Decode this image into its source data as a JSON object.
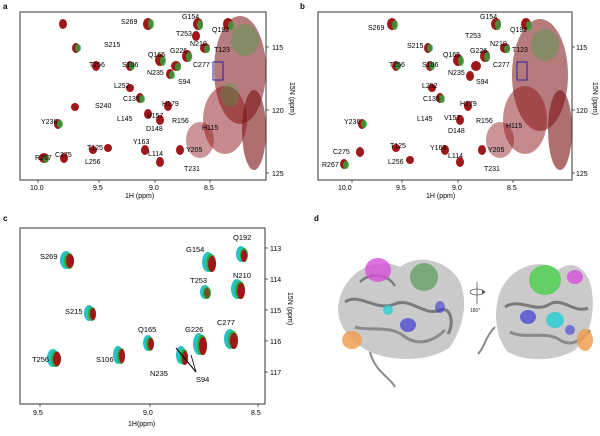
{
  "panels": {
    "a": {
      "label": "a",
      "x_axis": {
        "label": "1H (ppm)",
        "ticks": [
          "10.0",
          "9.5",
          "9.0",
          "8.5"
        ]
      },
      "y_axis": {
        "label": "15N (ppm)",
        "ticks": [
          "115",
          "120",
          "125"
        ]
      },
      "residues": [
        "S269",
        "G154",
        "Q192",
        "S215",
        "N210",
        "T123",
        "T253",
        "Q165",
        "G226",
        "C277",
        "T256",
        "S106",
        "N235",
        "S94",
        "L252",
        "S240",
        "C135",
        "H179",
        "L145",
        "V157",
        "R156",
        "H115",
        "D148",
        "Y236",
        "Y163",
        "L114",
        "Y205",
        "T125",
        "R267",
        "C275",
        "L256",
        "T231"
      ]
    },
    "b": {
      "label": "b",
      "x_axis": {
        "label": "1H (ppm)",
        "ticks": [
          "10.0",
          "9.5",
          "9.0",
          "8.5"
        ]
      },
      "y_axis": {
        "label": "15N (ppm)",
        "ticks": [
          "115",
          "120",
          "125"
        ]
      },
      "residues": [
        "S269",
        "G154",
        "Q192",
        "S215",
        "N210",
        "T123",
        "T253",
        "Q165",
        "G226",
        "C277",
        "T256",
        "S106",
        "N235",
        "S94",
        "L252",
        "C135",
        "H179",
        "L145",
        "V157",
        "R156",
        "H115",
        "D148",
        "Y236",
        "Y163",
        "L114",
        "Y205",
        "T125",
        "C275",
        "R267",
        "L256",
        "T231"
      ]
    },
    "c": {
      "label": "c",
      "x_axis": {
        "label": "1H(ppm)",
        "ticks": [
          "9.5",
          "9.0",
          "8.5"
        ]
      },
      "y_axis": {
        "label": "15N (ppm)",
        "ticks": [
          "113",
          "114",
          "115",
          "116",
          "117"
        ]
      },
      "residues": [
        "S269",
        "G154",
        "Q192",
        "T253",
        "N210",
        "S215",
        "Q165",
        "G226",
        "C277",
        "T256",
        "S106",
        "N235",
        "S94"
      ]
    },
    "d": {
      "label": "d",
      "rotation_label": "180°"
    }
  },
  "colors": {
    "red": "#a0171a",
    "green": "#2ea83a",
    "cyan": "#27c3c3",
    "box": "#2a1fa0",
    "protein": "#9a9a9a"
  }
}
